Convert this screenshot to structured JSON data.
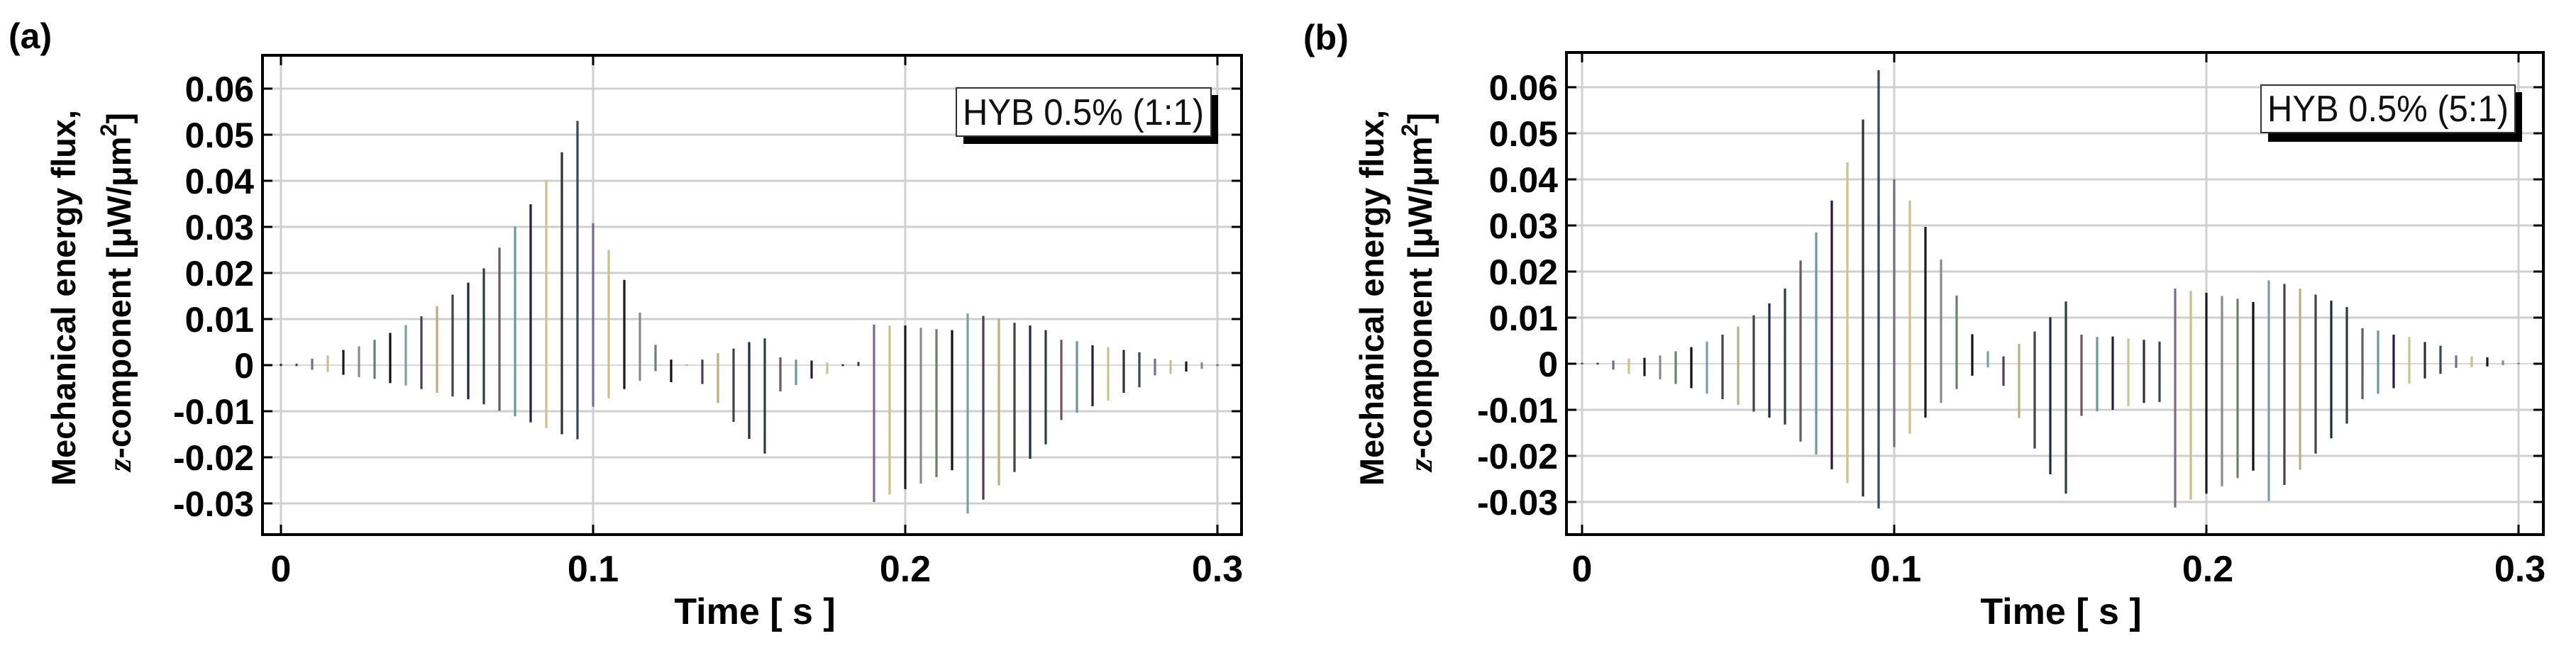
{
  "figure": {
    "panels": [
      {
        "id": "a",
        "panel_label": "(a)",
        "legend": "HYB 0.5% (1:1)",
        "ylabel_line1": "Mechanical energy flux,",
        "ylabel_line2_italic": "z",
        "ylabel_line2_rest": "-component [μW/μm",
        "ylabel_sup": "2",
        "ylabel_close": "]",
        "xlabel": "Time [ s ]",
        "yticks": [
          "0.06",
          "0.05",
          "0.04",
          "0.03",
          "0.02",
          "0.01",
          "0",
          "-0.01",
          "-0.02",
          "-0.03"
        ],
        "xticks": [
          "0",
          "0.1",
          "0.2",
          "0.3"
        ]
      },
      {
        "id": "b",
        "panel_label": "(b)",
        "legend": "HYB 0.5% (5:1)",
        "ylabel_line1": "Mechanical energy flux,",
        "ylabel_line2_italic": "z",
        "ylabel_line2_rest": "-component [μW/μm",
        "ylabel_sup": "2",
        "ylabel_close": "]",
        "xlabel": "Time [ s ]",
        "yticks": [
          "0.06",
          "0.05",
          "0.04",
          "0.03",
          "0.02",
          "0.01",
          "0",
          "-0.01",
          "-0.02",
          "-0.03"
        ],
        "xticks": [
          "0",
          "0.1",
          "0.2",
          "0.3"
        ]
      }
    ],
    "stem_colors": [
      "#2f2f33",
      "#3a4652",
      "#7a6a8a",
      "#c9c08a",
      "#1a1a1a",
      "#8a8a8a",
      "#6e7e70",
      "#111111",
      "#78a0a0",
      "#4a4052",
      "#b8b080",
      "#444444",
      "#1e2a40",
      "#2e3e34",
      "#6a5a60",
      "#6a9a98",
      "#2a1a3a",
      "#c8c68a"
    ]
  },
  "chart_data": [
    {
      "type": "bar",
      "subtype": "bipolar stem (min/max envelope per time sample)",
      "title": "HYB 0.5% (1:1)",
      "panel": "(a)",
      "xlabel": "Time [s]",
      "ylabel": "Mechanical energy flux, z-component [μW/μm²]",
      "xlim": [
        0,
        0.3
      ],
      "ylim": [
        -0.036,
        0.067
      ],
      "xticks": [
        0,
        0.1,
        0.2,
        0.3
      ],
      "yticks": [
        -0.03,
        -0.02,
        -0.01,
        0,
        0.01,
        0.02,
        0.03,
        0.04,
        0.05,
        0.06
      ],
      "grid": true,
      "legend_position": "upper right",
      "t": [
        0,
        0.005,
        0.01,
        0.015,
        0.02,
        0.025,
        0.03,
        0.035,
        0.04,
        0.045,
        0.05,
        0.055,
        0.06,
        0.065,
        0.07,
        0.075,
        0.08,
        0.085,
        0.09,
        0.095,
        0.1,
        0.105,
        0.11,
        0.115,
        0.12,
        0.125,
        0.13,
        0.135,
        0.14,
        0.145,
        0.15,
        0.155,
        0.16,
        0.165,
        0.17,
        0.175,
        0.18,
        0.185,
        0.19,
        0.195,
        0.2,
        0.205,
        0.21,
        0.215,
        0.22,
        0.225,
        0.23,
        0.235,
        0.24,
        0.245,
        0.25,
        0.255,
        0.26,
        0.265,
        0.27,
        0.275,
        0.28,
        0.285,
        0.29,
        0.295,
        0.3
      ],
      "max": [
        0.0003,
        0.0003,
        0.0014,
        0.0021,
        0.0033,
        0.0041,
        0.0055,
        0.007,
        0.0087,
        0.0106,
        0.0128,
        0.0153,
        0.0179,
        0.021,
        0.0255,
        0.0301,
        0.0349,
        0.0402,
        0.0462,
        0.053,
        0.0308,
        0.025,
        0.0185,
        0.0114,
        0.0044,
        0.0012,
        0.0001,
        0.0012,
        0.0026,
        0.0036,
        0.005,
        0.0058,
        0.0017,
        0.0012,
        0.001,
        0.0006,
        0.0002,
        0.0007,
        0.0088,
        0.0086,
        0.0086,
        0.0081,
        0.0078,
        0.0076,
        0.0112,
        0.0107,
        0.0102,
        0.0092,
        0.0086,
        0.0076,
        0.0055,
        0.0052,
        0.0043,
        0.0039,
        0.0033,
        0.0028,
        0.0014,
        0.0011,
        0.0008,
        0.0006,
        0.0002
      ],
      "min": [
        -0.0002,
        -0.0002,
        -0.001,
        -0.0015,
        -0.0021,
        -0.0026,
        -0.003,
        -0.0039,
        -0.0044,
        -0.0052,
        -0.006,
        -0.0068,
        -0.0074,
        -0.0085,
        -0.0099,
        -0.0111,
        -0.0124,
        -0.0137,
        -0.015,
        -0.0161,
        -0.009,
        -0.0072,
        -0.0052,
        -0.0034,
        -0.0013,
        -0.0037,
        -0.0001,
        -0.0041,
        -0.0082,
        -0.0123,
        -0.016,
        -0.0192,
        -0.0057,
        -0.0043,
        -0.0029,
        -0.0019,
        -0.0002,
        -0.0002,
        -0.0297,
        -0.0281,
        -0.0269,
        -0.0257,
        -0.0243,
        -0.0228,
        -0.0322,
        -0.0292,
        -0.0261,
        -0.0232,
        -0.0203,
        -0.0172,
        -0.0119,
        -0.0103,
        -0.0089,
        -0.0077,
        -0.006,
        -0.0048,
        -0.0022,
        -0.0019,
        -0.0014,
        -0.0008,
        -0.0002
      ]
    },
    {
      "type": "bar",
      "subtype": "bipolar stem (min/max envelope per time sample)",
      "title": "HYB 0.5% (5:1)",
      "panel": "(b)",
      "xlabel": "Time [s]",
      "ylabel": "Mechanical energy flux, z-component [μW/μm²]",
      "xlim": [
        0,
        0.3
      ],
      "ylim": [
        -0.037,
        0.066
      ],
      "xticks": [
        0,
        0.1,
        0.2,
        0.3
      ],
      "yticks": [
        -0.03,
        -0.02,
        -0.01,
        0,
        0.01,
        0.02,
        0.03,
        0.04,
        0.05,
        0.06
      ],
      "grid": true,
      "legend_position": "upper right",
      "t": [
        0,
        0.005,
        0.01,
        0.015,
        0.02,
        0.025,
        0.03,
        0.035,
        0.04,
        0.045,
        0.05,
        0.055,
        0.06,
        0.065,
        0.07,
        0.075,
        0.08,
        0.085,
        0.09,
        0.095,
        0.1,
        0.105,
        0.11,
        0.115,
        0.12,
        0.125,
        0.13,
        0.135,
        0.14,
        0.145,
        0.15,
        0.155,
        0.16,
        0.165,
        0.17,
        0.175,
        0.18,
        0.185,
        0.19,
        0.195,
        0.2,
        0.205,
        0.21,
        0.215,
        0.22,
        0.225,
        0.23,
        0.235,
        0.24,
        0.245,
        0.25,
        0.255,
        0.26,
        0.265,
        0.27,
        0.275,
        0.28,
        0.285,
        0.29,
        0.295,
        0.3
      ],
      "max": [
        0.0002,
        0.0002,
        0.0007,
        0.0011,
        0.0013,
        0.0018,
        0.0027,
        0.0036,
        0.0048,
        0.0063,
        0.0081,
        0.0105,
        0.0131,
        0.0163,
        0.0224,
        0.0285,
        0.0354,
        0.0437,
        0.053,
        0.0637,
        0.04,
        0.0354,
        0.0297,
        0.0226,
        0.0148,
        0.0064,
        0.0027,
        0.0016,
        0.0043,
        0.007,
        0.0101,
        0.0135,
        0.0063,
        0.0058,
        0.0059,
        0.0055,
        0.0052,
        0.0048,
        0.0163,
        0.0158,
        0.0154,
        0.0147,
        0.0141,
        0.0134,
        0.0181,
        0.0173,
        0.0163,
        0.015,
        0.0137,
        0.0123,
        0.0077,
        0.0072,
        0.0063,
        0.0058,
        0.0047,
        0.0039,
        0.0018,
        0.0016,
        0.0014,
        0.0007,
        0.0002
      ],
      "min": [
        -0.0001,
        -0.0002,
        -0.0013,
        -0.0022,
        -0.0027,
        -0.0034,
        -0.0044,
        -0.0053,
        -0.0065,
        -0.0077,
        -0.0089,
        -0.0104,
        -0.0117,
        -0.0132,
        -0.0169,
        -0.0197,
        -0.0229,
        -0.0259,
        -0.0288,
        -0.0314,
        -0.0181,
        -0.0152,
        -0.0117,
        -0.0085,
        -0.0055,
        -0.0026,
        -0.0008,
        -0.0048,
        -0.0118,
        -0.0184,
        -0.024,
        -0.0282,
        -0.0113,
        -0.0103,
        -0.01,
        -0.0092,
        -0.0085,
        -0.0083,
        -0.0312,
        -0.0295,
        -0.0282,
        -0.0266,
        -0.0248,
        -0.0232,
        -0.0298,
        -0.0263,
        -0.023,
        -0.0195,
        -0.0162,
        -0.013,
        -0.0077,
        -0.0065,
        -0.0053,
        -0.0043,
        -0.0032,
        -0.0022,
        -0.0009,
        -0.0008,
        -0.0006,
        -0.0003,
        -0.0001
      ]
    }
  ]
}
